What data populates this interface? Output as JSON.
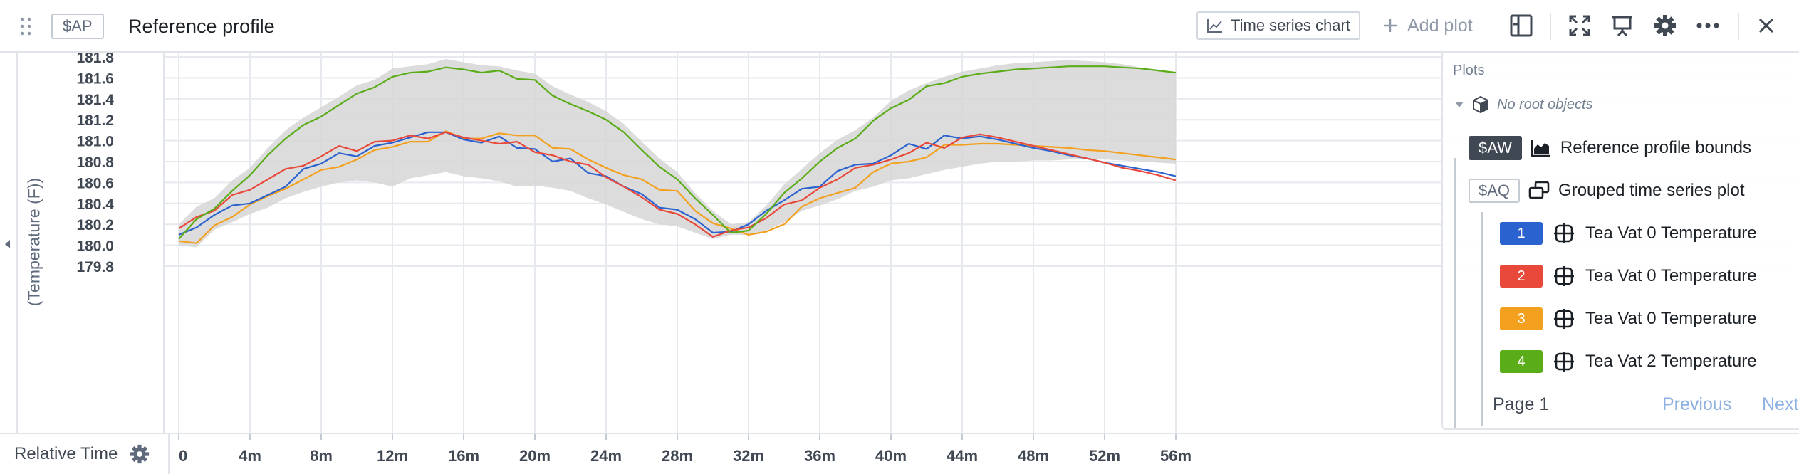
{
  "header": {
    "app_tag": "$AP",
    "title": "Reference profile",
    "chart_type_label": "Time series chart",
    "add_plot_label": "Add plot"
  },
  "yaxis_label": "(Temperature (F))",
  "xaxis_bar": {
    "label": "Relative Time"
  },
  "panel": {
    "title": "Plots",
    "root_label": "No root objects",
    "plots": [
      {
        "tag": "$AW",
        "label": "Reference profile bounds",
        "icon": "area-chart-icon"
      },
      {
        "tag": "$AQ",
        "label": "Grouped time series plot",
        "icon": "grouped-series-icon"
      }
    ],
    "series": [
      {
        "index": "1",
        "label": "Tea Vat 0 Temperature",
        "color": "#2a62cf"
      },
      {
        "index": "2",
        "label": "Tea Vat 0 Temperature",
        "color": "#e8493a"
      },
      {
        "index": "3",
        "label": "Tea Vat 0 Temperature",
        "color": "#f2a01d"
      },
      {
        "index": "4",
        "label": "Tea Vat 2 Temperature",
        "color": "#5aac18"
      }
    ],
    "page_label": "Page 1",
    "prev_label": "Previous",
    "next_label": "Next"
  },
  "chart_data": {
    "type": "line",
    "xlabel": "Relative Time",
    "ylabel": "(Temperature (F))",
    "xlim": [
      -0.3,
      56.8
    ],
    "ylim": [
      179.8,
      181.88
    ],
    "x_ticks": [
      "0",
      "4m",
      "8m",
      "12m",
      "16m",
      "20m",
      "24m",
      "28m",
      "32m",
      "36m",
      "40m",
      "44m",
      "48m",
      "52m",
      "56m"
    ],
    "y_ticks": [
      "179.8",
      "180.0",
      "180.2",
      "180.4",
      "180.6",
      "180.8",
      "181.0",
      "181.2",
      "181.4",
      "181.6",
      "181.8"
    ],
    "grid": true,
    "band": {
      "name": "Reference profile bounds",
      "color": "#d6d6d6",
      "x": [
        0,
        1,
        2,
        3,
        4,
        5,
        6,
        7,
        8,
        9,
        10,
        11,
        12,
        13,
        14,
        15,
        16,
        17,
        18,
        19,
        20,
        21,
        22,
        23,
        24,
        25,
        26,
        27,
        28,
        29,
        30,
        31,
        32,
        33,
        34,
        35,
        36,
        37,
        38,
        39,
        40,
        41,
        42,
        43,
        44,
        45,
        46,
        47,
        48,
        49,
        50,
        51,
        52,
        53,
        54,
        55,
        56
      ],
      "upper": [
        180.2,
        180.37,
        180.45,
        180.62,
        180.74,
        180.93,
        181.1,
        181.22,
        181.32,
        181.42,
        181.53,
        181.58,
        181.69,
        181.71,
        181.73,
        181.78,
        181.75,
        181.72,
        181.71,
        181.67,
        181.64,
        181.52,
        181.44,
        181.37,
        181.28,
        181.16,
        180.99,
        180.83,
        180.7,
        180.5,
        180.33,
        180.2,
        180.22,
        180.38,
        180.58,
        180.73,
        180.88,
        181.01,
        181.1,
        181.22,
        181.38,
        181.48,
        181.55,
        181.61,
        181.66,
        181.69,
        181.72,
        181.74,
        181.75,
        181.76,
        181.77,
        181.76,
        181.75,
        181.73,
        181.7,
        181.68,
        181.65
      ],
      "lower": [
        180.0,
        179.98,
        180.15,
        180.22,
        180.3,
        180.36,
        180.45,
        180.51,
        180.56,
        180.6,
        180.62,
        180.6,
        180.56,
        180.64,
        180.67,
        180.7,
        180.66,
        180.64,
        180.61,
        180.56,
        180.57,
        180.55,
        180.52,
        180.45,
        180.39,
        180.32,
        180.25,
        180.2,
        180.18,
        180.12,
        180.06,
        180.1,
        180.1,
        180.14,
        180.22,
        180.33,
        180.38,
        180.44,
        180.52,
        180.56,
        180.62,
        180.64,
        180.68,
        180.72,
        180.75,
        180.78,
        180.8,
        180.8,
        180.81,
        180.81,
        180.82,
        180.82,
        180.82,
        180.81,
        180.8,
        180.79,
        180.78
      ]
    },
    "series": [
      {
        "name": "Tea Vat 0 Temperature",
        "color": "#2a62cf",
        "x": [
          0,
          1,
          2,
          3,
          4,
          5,
          6,
          7,
          8,
          9,
          10,
          11,
          12,
          13,
          14,
          15,
          16,
          17,
          18,
          19,
          20,
          21,
          22,
          23,
          24,
          25,
          26,
          27,
          28,
          29,
          30,
          31,
          32,
          33,
          34,
          35,
          36,
          37,
          38,
          39,
          40,
          41,
          42,
          43,
          44,
          45,
          46,
          47,
          48,
          49,
          50,
          51,
          52,
          53,
          54,
          55,
          56
        ],
        "y": [
          180.1,
          180.17,
          180.29,
          180.38,
          180.4,
          180.48,
          180.56,
          180.73,
          180.78,
          180.88,
          180.85,
          180.95,
          180.98,
          181.03,
          181.08,
          181.08,
          181.01,
          180.98,
          181.04,
          180.93,
          180.92,
          180.8,
          180.83,
          180.69,
          180.66,
          180.56,
          180.49,
          180.36,
          180.34,
          180.25,
          180.12,
          180.13,
          180.2,
          180.33,
          180.43,
          180.54,
          180.56,
          180.71,
          180.77,
          180.78,
          180.86,
          180.97,
          180.92,
          181.05,
          181.02,
          181.04,
          181.01,
          180.97,
          180.93,
          180.9,
          180.86,
          180.83,
          180.79,
          180.76,
          180.73,
          180.7,
          180.66
        ]
      },
      {
        "name": "Tea Vat 0 Temperature",
        "color": "#e8493a",
        "x": [
          0,
          1,
          2,
          3,
          4,
          5,
          6,
          7,
          8,
          9,
          10,
          11,
          12,
          13,
          14,
          15,
          16,
          17,
          18,
          19,
          20,
          21,
          22,
          23,
          24,
          25,
          26,
          27,
          28,
          29,
          30,
          31,
          32,
          33,
          34,
          35,
          36,
          37,
          38,
          39,
          40,
          41,
          42,
          43,
          44,
          45,
          46,
          47,
          48,
          49,
          50,
          51,
          52,
          53,
          54,
          55,
          56
        ],
        "y": [
          180.16,
          180.27,
          180.33,
          180.48,
          180.53,
          180.63,
          180.73,
          180.76,
          180.85,
          180.95,
          180.9,
          180.99,
          181.0,
          181.05,
          181.02,
          181.08,
          181.03,
          181.0,
          180.97,
          180.99,
          180.89,
          180.86,
          180.8,
          180.77,
          180.65,
          180.56,
          180.46,
          180.34,
          180.3,
          180.2,
          180.08,
          180.14,
          180.17,
          180.26,
          180.39,
          180.43,
          180.55,
          180.63,
          180.74,
          180.77,
          180.82,
          180.88,
          180.98,
          180.93,
          181.03,
          181.06,
          181.03,
          180.99,
          180.95,
          180.91,
          180.87,
          180.83,
          180.79,
          180.74,
          180.71,
          180.67,
          180.62
        ]
      },
      {
        "name": "Tea Vat 0 Temperature",
        "color": "#f2a01d",
        "x": [
          0,
          1,
          2,
          3,
          4,
          5,
          6,
          7,
          8,
          9,
          10,
          11,
          12,
          13,
          14,
          15,
          16,
          17,
          18,
          19,
          20,
          21,
          22,
          23,
          24,
          25,
          26,
          27,
          28,
          29,
          30,
          31,
          32,
          33,
          34,
          35,
          36,
          37,
          38,
          39,
          40,
          41,
          42,
          43,
          44,
          45,
          46,
          47,
          48,
          49,
          50,
          51,
          52,
          53,
          54,
          55,
          56
        ],
        "y": [
          180.04,
          180.02,
          180.19,
          180.27,
          180.39,
          180.47,
          180.54,
          180.63,
          180.72,
          180.75,
          180.82,
          180.91,
          180.94,
          180.99,
          180.99,
          181.09,
          181.02,
          181.02,
          181.07,
          181.05,
          181.05,
          180.93,
          180.92,
          180.82,
          180.74,
          180.67,
          180.63,
          180.53,
          180.52,
          180.33,
          180.21,
          180.16,
          180.1,
          180.13,
          180.2,
          180.37,
          180.45,
          180.5,
          180.55,
          180.7,
          180.78,
          180.8,
          180.84,
          180.96,
          180.96,
          180.97,
          180.97,
          180.96,
          180.95,
          180.94,
          180.93,
          180.91,
          180.9,
          180.88,
          180.86,
          180.84,
          180.82
        ]
      },
      {
        "name": "Tea Vat 2 Temperature",
        "color": "#5aac18",
        "x": [
          0,
          1,
          2,
          3,
          4,
          5,
          6,
          7,
          8,
          9,
          10,
          11,
          12,
          13,
          14,
          15,
          16,
          17,
          18,
          19,
          20,
          21,
          22,
          23,
          24,
          25,
          26,
          27,
          28,
          29,
          30,
          31,
          32,
          33,
          34,
          35,
          36,
          37,
          38,
          39,
          40,
          41,
          42,
          43,
          44,
          45,
          46,
          47,
          48,
          49,
          50,
          51,
          52,
          53,
          54,
          55,
          56
        ],
        "y": [
          180.06,
          180.25,
          180.35,
          180.52,
          180.67,
          180.86,
          181.02,
          181.15,
          181.23,
          181.34,
          181.45,
          181.51,
          181.61,
          181.65,
          181.66,
          181.7,
          181.68,
          181.65,
          181.67,
          181.59,
          181.58,
          181.43,
          181.35,
          181.28,
          181.2,
          181.08,
          180.91,
          180.75,
          180.63,
          180.45,
          180.29,
          180.12,
          180.14,
          180.3,
          180.5,
          180.64,
          180.8,
          180.93,
          181.02,
          181.19,
          181.31,
          181.39,
          181.52,
          181.55,
          181.61,
          181.64,
          181.66,
          181.68,
          181.69,
          181.7,
          181.71,
          181.71,
          181.71,
          181.7,
          181.69,
          181.67,
          181.65
        ]
      }
    ]
  }
}
